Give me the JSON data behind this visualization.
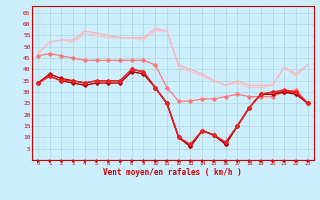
{
  "xlabel": "Vent moyen/en rafales ( km/h )",
  "x": [
    0,
    1,
    2,
    3,
    4,
    5,
    6,
    7,
    8,
    9,
    10,
    11,
    12,
    13,
    14,
    15,
    16,
    17,
    18,
    19,
    20,
    21,
    22,
    23
  ],
  "series": [
    {
      "color": "#ffaaaa",
      "linewidth": 0.8,
      "marker": null,
      "values": [
        47,
        52,
        53,
        53,
        57,
        56,
        55,
        54,
        54,
        54,
        58,
        57,
        42,
        40,
        38,
        35,
        33,
        35,
        33,
        33,
        33,
        41,
        38,
        42
      ]
    },
    {
      "color": "#ffbbbb",
      "linewidth": 0.8,
      "marker": null,
      "values": [
        47,
        52,
        53,
        52,
        56,
        55,
        54,
        54,
        54,
        53,
        57,
        57,
        41,
        39,
        37,
        35,
        33,
        34,
        32,
        32,
        33,
        41,
        37,
        42
      ]
    },
    {
      "color": "#ff7777",
      "linewidth": 0.9,
      "marker": "D",
      "markersize": 1.8,
      "values": [
        46,
        47,
        46,
        45,
        44,
        44,
        44,
        44,
        44,
        44,
        42,
        32,
        26,
        26,
        27,
        27,
        28,
        29,
        28,
        28,
        28,
        30,
        31,
        25
      ]
    },
    {
      "color": "#cc0000",
      "linewidth": 1.0,
      "marker": "D",
      "markersize": 1.8,
      "values": [
        34,
        38,
        36,
        35,
        34,
        35,
        35,
        35,
        40,
        39,
        32,
        25,
        10,
        6,
        13,
        11,
        7,
        15,
        23,
        29,
        30,
        30,
        30,
        25
      ]
    },
    {
      "color": "#aa0000",
      "linewidth": 1.0,
      "marker": "D",
      "markersize": 1.8,
      "values": [
        34,
        37,
        35,
        34,
        33,
        34,
        34,
        34,
        39,
        38,
        32,
        25,
        10,
        6,
        13,
        11,
        7,
        15,
        23,
        29,
        29,
        30,
        29,
        25
      ]
    },
    {
      "color": "#ee2222",
      "linewidth": 0.9,
      "marker": "D",
      "markersize": 1.8,
      "values": [
        34,
        37,
        35,
        35,
        34,
        35,
        35,
        35,
        40,
        39,
        32,
        25,
        10,
        7,
        13,
        11,
        8,
        15,
        23,
        29,
        30,
        31,
        30,
        25
      ]
    }
  ],
  "ylim": [
    0,
    68
  ],
  "yticks": [
    5,
    10,
    15,
    20,
    25,
    30,
    35,
    40,
    45,
    50,
    55,
    60,
    65
  ],
  "xticks": [
    0,
    1,
    2,
    3,
    4,
    5,
    6,
    7,
    8,
    9,
    10,
    11,
    12,
    13,
    14,
    15,
    16,
    17,
    18,
    19,
    20,
    21,
    22,
    23
  ],
  "bg_color": "#cceeff",
  "grid_color": "#aacccc",
  "line_color": "#cc0000",
  "label_color": "#cc0000"
}
